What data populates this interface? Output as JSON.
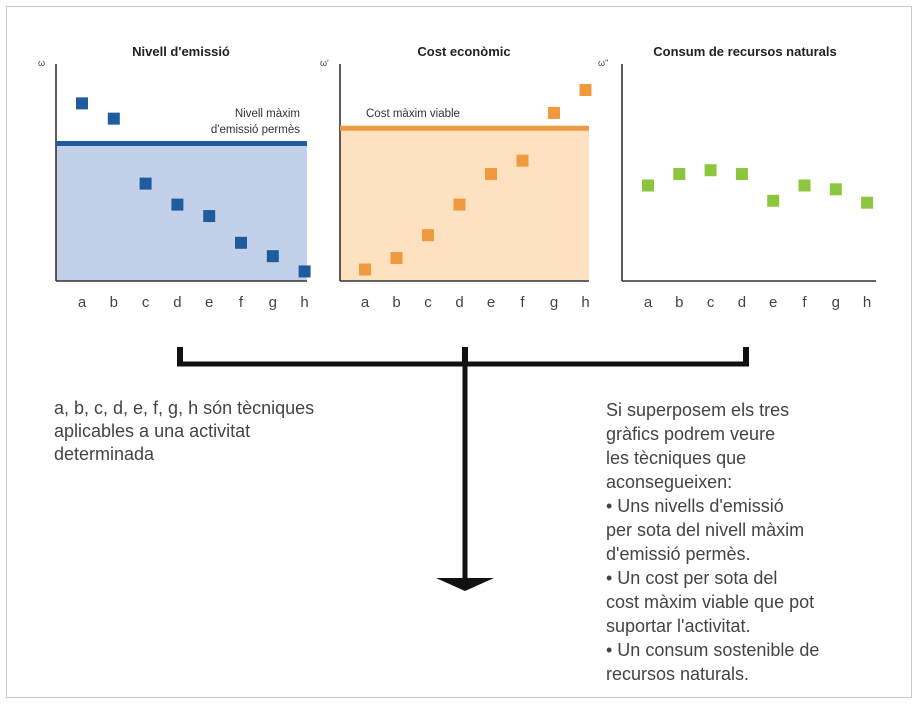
{
  "colors": {
    "emission_marker": "#1f5c9e",
    "emission_fill": "#c3d0e9",
    "cost_marker": "#ef9a3e",
    "cost_fill": "#fde1c1",
    "resources_marker": "#8cc63f",
    "axis": "#333333"
  },
  "chart_data": [
    {
      "type": "scatter",
      "title": "Nivell d'emissió",
      "ylabel": "ω",
      "categories": [
        "a",
        "b",
        "c",
        "d",
        "e",
        "f",
        "g",
        "h"
      ],
      "values": [
        0.93,
        0.85,
        0.51,
        0.4,
        0.34,
        0.2,
        0.13,
        0.05
      ],
      "ylim": [
        0,
        1
      ],
      "threshold": {
        "value": 0.72,
        "label_lines": [
          "Nivell màxim",
          "d'emissió permès"
        ]
      },
      "shade_below_threshold": true
    },
    {
      "type": "scatter",
      "title": "Cost econòmic",
      "ylabel": "ω'",
      "categories": [
        "a",
        "b",
        "c",
        "d",
        "e",
        "f",
        "g",
        "h"
      ],
      "values": [
        0.06,
        0.12,
        0.24,
        0.4,
        0.56,
        0.63,
        0.88,
        1.0
      ],
      "ylim": [
        0,
        1
      ],
      "threshold": {
        "value": 0.8,
        "label_lines": [
          "Cost màxim viable"
        ]
      },
      "shade_below_threshold": true
    },
    {
      "type": "scatter",
      "title": "Consum de recursos naturals",
      "ylabel": "ω''",
      "categories": [
        "a",
        "b",
        "c",
        "d",
        "e",
        "f",
        "g",
        "h"
      ],
      "values": [
        0.5,
        0.56,
        0.58,
        0.56,
        0.42,
        0.5,
        0.48,
        0.41
      ],
      "ylim": [
        0,
        1
      ],
      "threshold": null,
      "shade_below_threshold": false
    }
  ],
  "notes": {
    "left": "a, b, c, d, e, f, g, h són tècniques aplicables a una activitat determinada",
    "right": [
      "Si superposem els tres",
      "gràfics podrem veure",
      "les tècniques que",
      "aconsegueixen:",
      "• Uns nivells d'emissió",
      "per sota del nivell màxim",
      "d'emissió permès.",
      "• Un cost per sota del",
      "cost màxim viable que pot",
      "suportar l'activitat.",
      "• Un consum sostenible de",
      "recursos naturals."
    ]
  }
}
